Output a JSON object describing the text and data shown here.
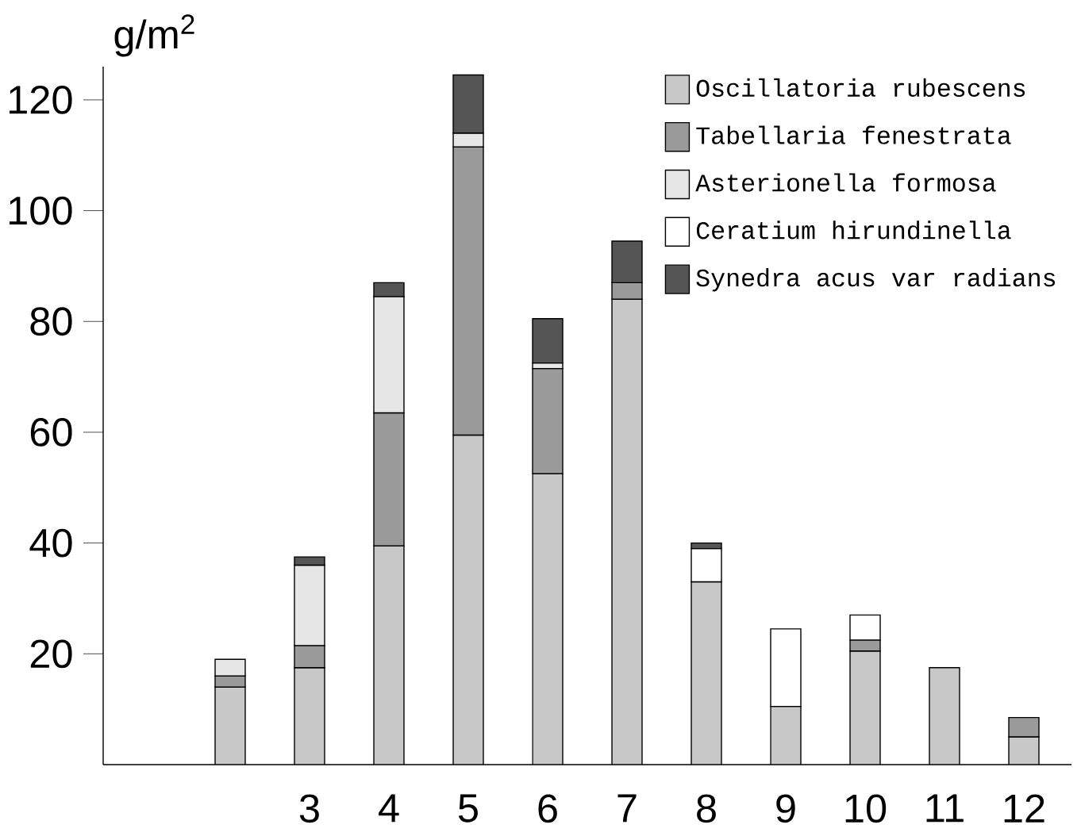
{
  "chart_data": {
    "type": "bar",
    "stacked": true,
    "ylabel": "g/m$^{2}$",
    "categories": [
      null,
      null,
      "3",
      "4",
      "5",
      "6",
      "7",
      "8",
      "9",
      "10",
      "11",
      "12"
    ],
    "series": [
      {
        "name": "Oscillatoria rubescens",
        "color": "#c8c8c8",
        "values": [
          null,
          14,
          17.5,
          39.5,
          59.5,
          52.5,
          84,
          33,
          10.5,
          20.5,
          17.5,
          5
        ]
      },
      {
        "name": "Tabellaria fenestrata",
        "color": "#9a9a9a",
        "values": [
          null,
          2,
          4,
          24,
          52,
          19,
          3,
          null,
          null,
          2,
          null,
          3.5
        ]
      },
      {
        "name": "Asterionella formosa",
        "color": "#e6e6e6",
        "values": [
          null,
          3,
          14.5,
          21,
          2.5,
          1,
          null,
          null,
          null,
          null,
          null,
          null
        ]
      },
      {
        "name": "Ceratium hirundinella",
        "color": "#ffffff",
        "values": [
          null,
          null,
          null,
          null,
          null,
          null,
          null,
          6,
          14,
          4.5,
          null,
          null
        ]
      },
      {
        "name": "Synedra acus var radians",
        "color": "#555555",
        "values": [
          null,
          null,
          1.5,
          2.5,
          10.5,
          8,
          7.5,
          1,
          null,
          null,
          null,
          null
        ]
      }
    ],
    "ylim": [
      0,
      126
    ],
    "yticks": [
      20,
      40,
      60,
      80,
      100,
      120
    ],
    "grid": false,
    "legend": "top right"
  }
}
